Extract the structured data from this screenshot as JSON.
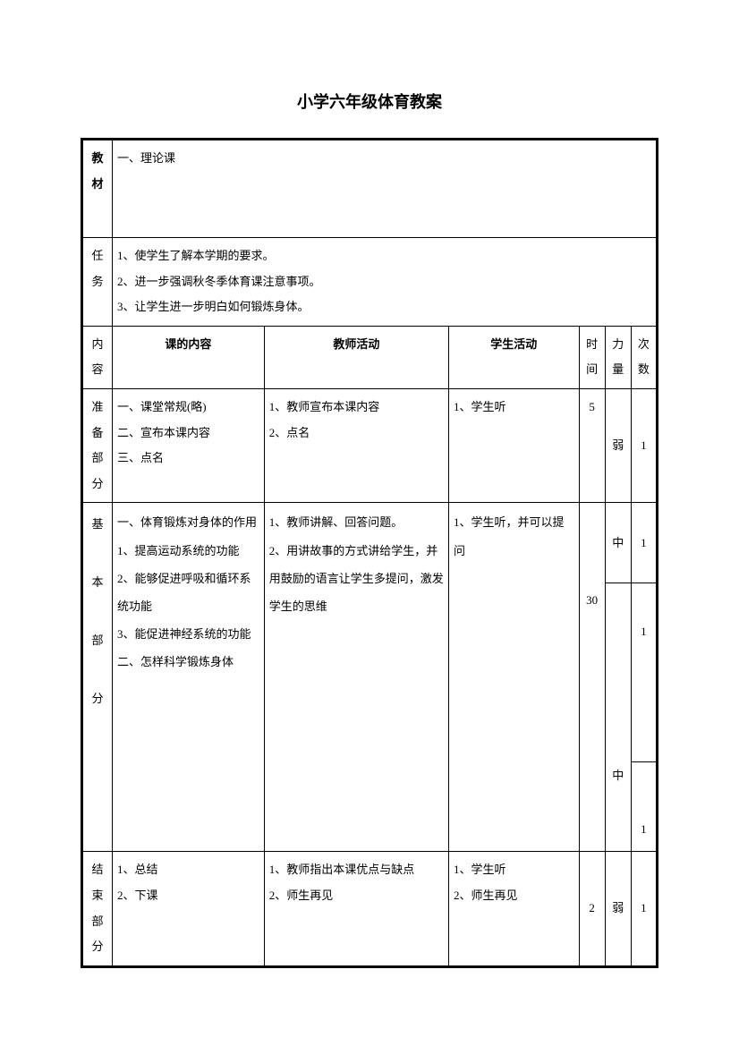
{
  "title": "小学六年级体育教案",
  "row1": {
    "label": "教\n材",
    "content": "一、理论课"
  },
  "row2": {
    "label": "任\n务",
    "content": "1、使学生了解本学期的要求。\n2、进一步强调秋冬季体育课注意事项。\n3、让学生进一步明白如何锻炼身体。"
  },
  "header": {
    "side": "内\n容",
    "c1": "课的内容",
    "c2": "教师活动",
    "c3": "学生活动",
    "n1": "时\n间",
    "n2": "力\n量",
    "n3": "次\n数"
  },
  "prep": {
    "label": "准\n备\n部\n分",
    "c1": "一、课堂常规(略)\n二、宣布本课内容\n三、点名",
    "c2": "1、教师宣布本课内容\n2、点名",
    "c3": "1、学生听",
    "time": "5",
    "force": "弱",
    "count": "1"
  },
  "main": {
    "label": "基\n\n本\n\n部\n\n分",
    "c1": "一、体育锻炼对身体的作用\n1、提高运动系统的功能\n2、能够促进呼吸和循环系统功能\n3、能促进神经系统的功能\n二、怎样科学锻炼身体",
    "c2": "1、教师讲解、回答问题。\n2、用讲故事的方式讲给学生，并用鼓励的语言让学生多提问，激发学生的思维",
    "c3": "1、学生听，并可以提问",
    "time": "30",
    "force1": "中",
    "force2": "中",
    "count1": "1",
    "count2": "1",
    "count3": "1"
  },
  "end": {
    "label": "结\n束\n部\n分",
    "c1": "1、总结\n2、下课",
    "c2": "1、教师指出本课优点与缺点\n2、师生再见",
    "c3": "1、学生听\n2、师生再见",
    "time": "2",
    "force": "弱",
    "count": "1"
  }
}
